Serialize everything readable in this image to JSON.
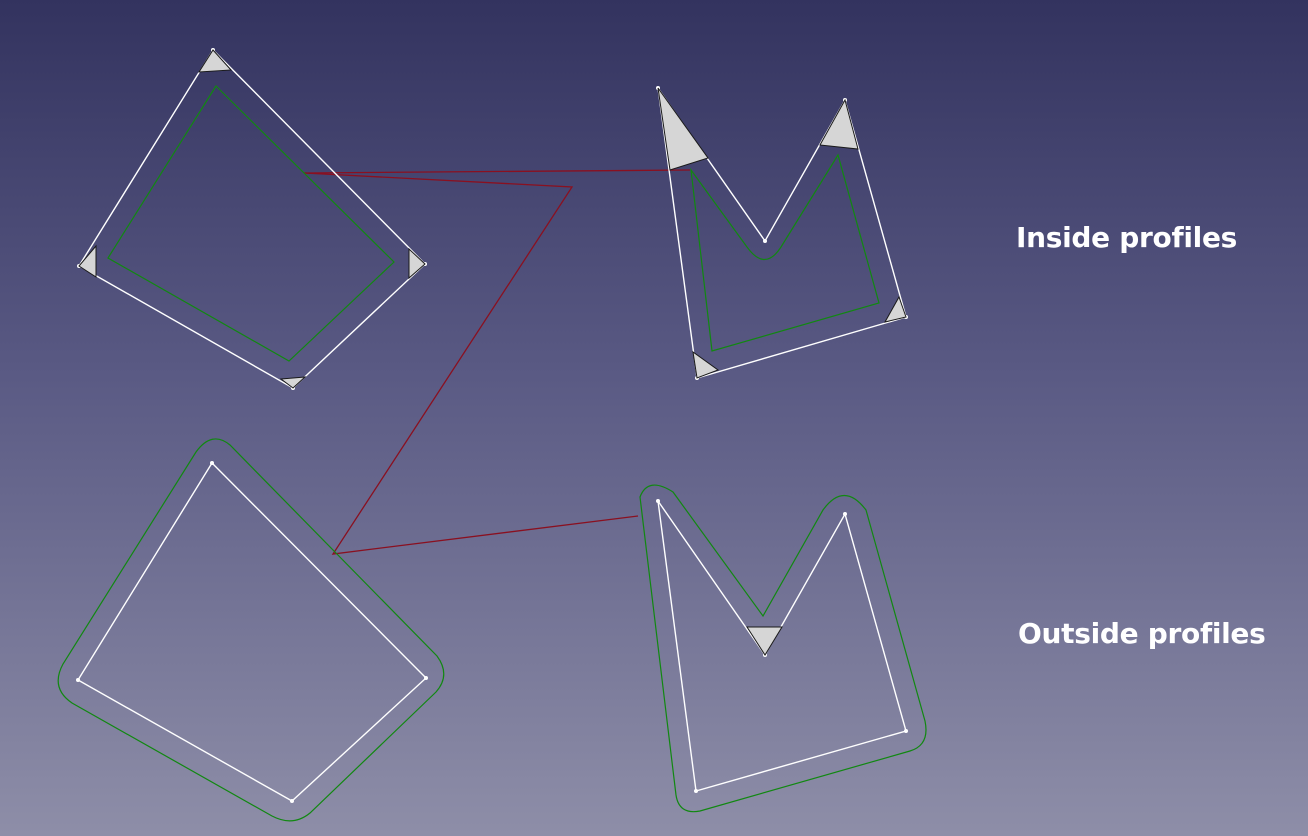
{
  "canvas": {
    "background_top": "#33335f",
    "background_bottom": "#8e8ea8"
  },
  "labels": {
    "inside": "Inside profiles",
    "outside": "Outside profiles"
  },
  "colors": {
    "original_profile": "#ffffff",
    "toolpath": "#118811",
    "rapid_move": "#8a1020",
    "direction_marker_fill": "#d6d6d6",
    "direction_marker_stroke": "#1a1a1a"
  }
}
